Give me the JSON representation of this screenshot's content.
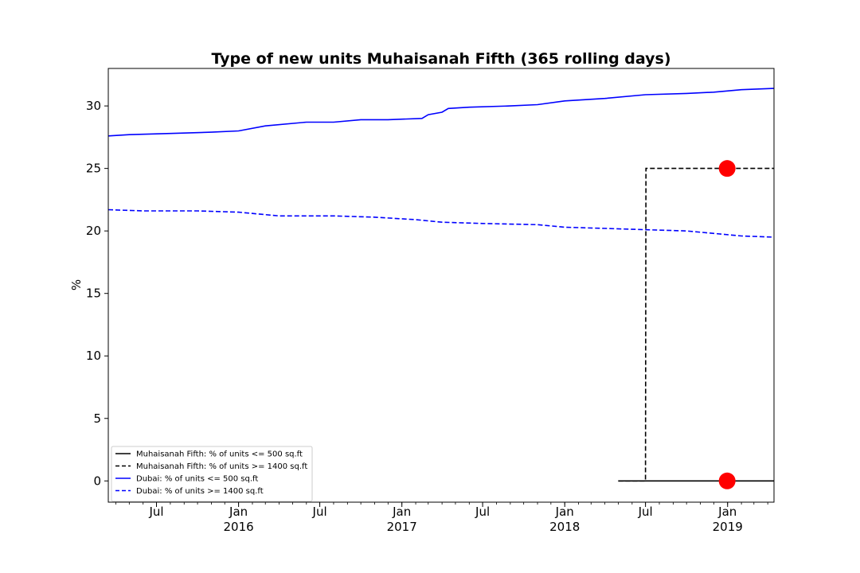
{
  "chart_data": {
    "type": "line",
    "title": "Type of new units Muhaisanah Fifth (365 rolling days)",
    "xlabel": "",
    "ylabel": "%",
    "xlim": [
      "2015-03-15",
      "2019-04-15"
    ],
    "ylim": [
      -1.7,
      33.0
    ],
    "yticks": [
      0,
      5,
      10,
      15,
      20,
      25,
      30
    ],
    "xticks": [
      {
        "date": "2015-07-01",
        "label": "Jul",
        "year": ""
      },
      {
        "date": "2016-01-01",
        "label": "Jan",
        "year": "2016"
      },
      {
        "date": "2016-07-01",
        "label": "Jul",
        "year": ""
      },
      {
        "date": "2017-01-01",
        "label": "Jan",
        "year": "2017"
      },
      {
        "date": "2017-07-01",
        "label": "Jul",
        "year": ""
      },
      {
        "date": "2018-01-01",
        "label": "Jan",
        "year": "2018"
      },
      {
        "date": "2018-07-01",
        "label": "Jul",
        "year": ""
      },
      {
        "date": "2019-01-01",
        "label": "Jan",
        "year": "2019"
      }
    ],
    "grid": false,
    "legend_position": "lower-left",
    "series": [
      {
        "name": "Muhaisanah Fifth: % of units <= 500 sq.ft",
        "color": "#000000",
        "style": "solid",
        "x": [
          "2018-05-01",
          "2018-07-01",
          "2018-07-02",
          "2019-04-15"
        ],
        "y": [
          0,
          0,
          0,
          0
        ]
      },
      {
        "name": "Muhaisanah Fifth: % of units >= 1400 sq.ft",
        "color": "#000000",
        "style": "dashed",
        "x": [
          "2018-05-01",
          "2018-07-01",
          "2018-07-02",
          "2019-04-15"
        ],
        "y": [
          0,
          0,
          25,
          25
        ]
      },
      {
        "name": "Dubai: % of units <= 500 sq.ft",
        "color": "#0000ff",
        "style": "solid",
        "x": [
          "2015-03-15",
          "2015-05-01",
          "2015-08-01",
          "2015-11-01",
          "2016-01-01",
          "2016-03-01",
          "2016-06-01",
          "2016-08-01",
          "2016-10-01",
          "2016-12-01",
          "2017-02-15",
          "2017-03-01",
          "2017-04-01",
          "2017-04-15",
          "2017-06-01",
          "2017-09-01",
          "2017-11-01",
          "2018-01-01",
          "2018-04-01",
          "2018-07-01",
          "2018-10-01",
          "2018-12-01",
          "2019-02-01",
          "2019-04-15"
        ],
        "y": [
          27.6,
          27.7,
          27.8,
          27.9,
          28.0,
          28.4,
          28.7,
          28.7,
          28.9,
          28.9,
          29.0,
          29.3,
          29.5,
          29.8,
          29.9,
          30.0,
          30.1,
          30.4,
          30.6,
          30.9,
          31.0,
          31.1,
          31.3,
          31.4
        ]
      },
      {
        "name": "Dubai: % of units >= 1400 sq.ft",
        "color": "#0000ff",
        "style": "dashed",
        "x": [
          "2015-03-15",
          "2015-06-01",
          "2015-10-01",
          "2016-01-01",
          "2016-04-01",
          "2016-08-01",
          "2016-11-01",
          "2017-02-01",
          "2017-04-01",
          "2017-07-01",
          "2017-11-01",
          "2018-01-01",
          "2018-04-01",
          "2018-07-01",
          "2018-10-01",
          "2018-12-01",
          "2019-02-01",
          "2019-04-15"
        ],
        "y": [
          21.7,
          21.6,
          21.6,
          21.5,
          21.2,
          21.2,
          21.1,
          20.9,
          20.7,
          20.6,
          20.5,
          20.3,
          20.2,
          20.1,
          20.0,
          19.8,
          19.6,
          19.5
        ]
      }
    ],
    "markers": [
      {
        "date": "2018-12-31",
        "value": 25,
        "color": "#ff0000"
      },
      {
        "date": "2018-12-31",
        "value": 0,
        "color": "#ff0000"
      }
    ]
  }
}
